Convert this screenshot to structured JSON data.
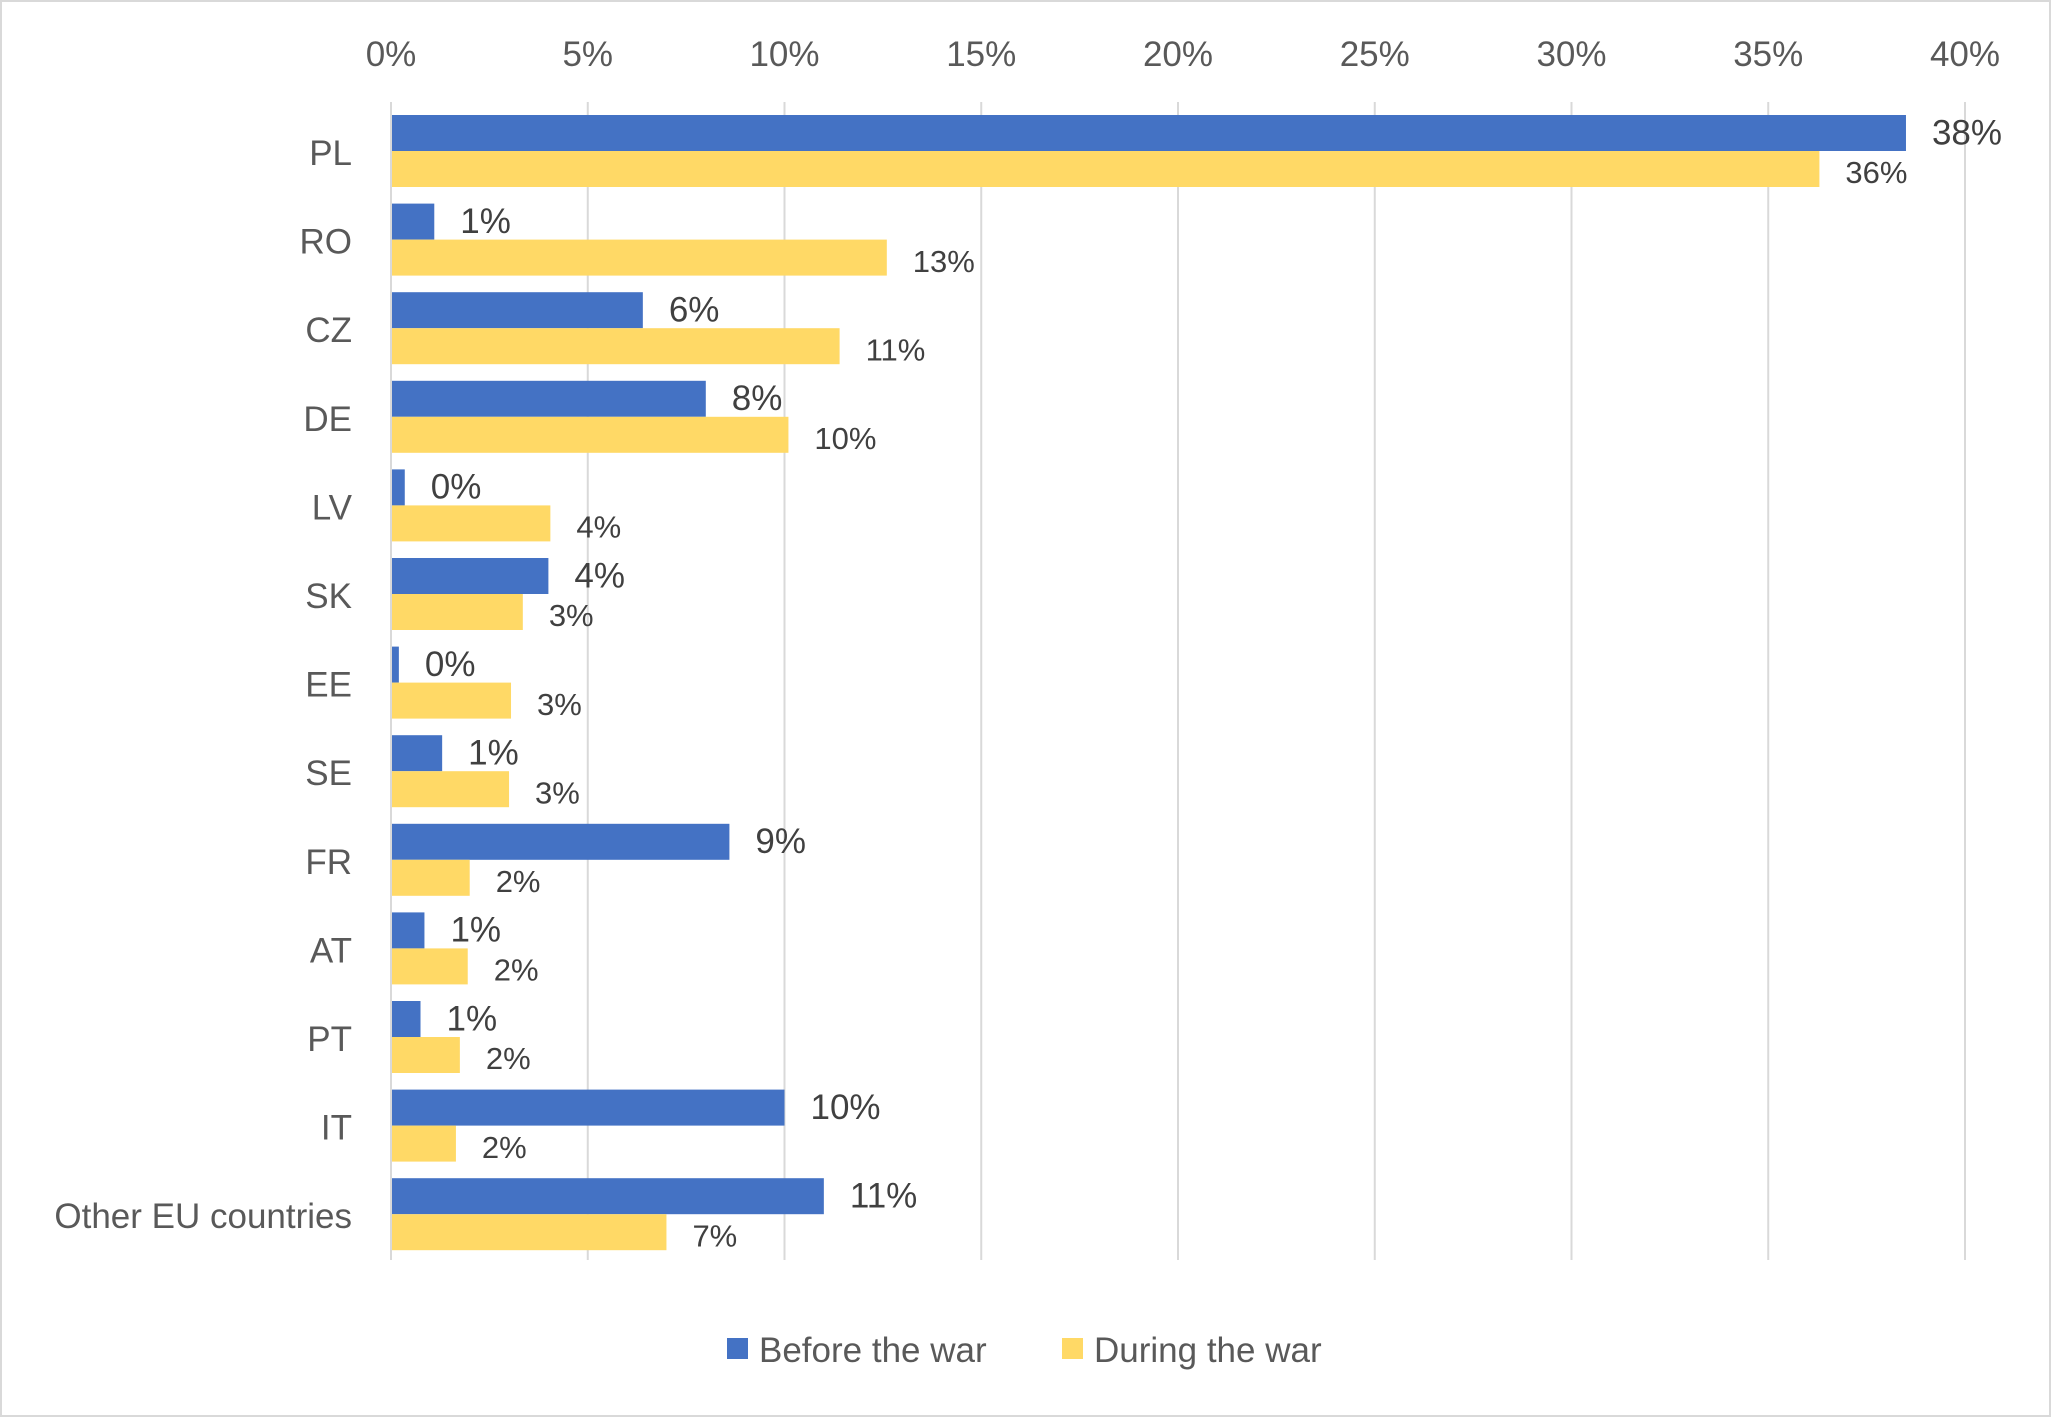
{
  "chart_data": {
    "type": "bar",
    "orientation": "horizontal",
    "categories": [
      "PL",
      "RO",
      "CZ",
      "DE",
      "LV",
      "SK",
      "EE",
      "SE",
      "FR",
      "AT",
      "PT",
      "IT",
      "Other EU countries"
    ],
    "series": [
      {
        "name": "Before the war",
        "color": "#4472C4",
        "values": [
          38.5,
          1.1,
          6.4,
          8.0,
          0.35,
          4.0,
          0.2,
          1.3,
          8.6,
          0.85,
          0.75,
          10.0,
          11.0
        ],
        "labels": [
          "38%",
          "1%",
          "6%",
          "8%",
          "0%",
          "4%",
          "0%",
          "1%",
          "9%",
          "1%",
          "1%",
          "10%",
          "11%"
        ]
      },
      {
        "name": "During the war",
        "color": "#FFD966",
        "values": [
          36.3,
          12.6,
          11.4,
          10.1,
          4.05,
          3.35,
          3.05,
          3.0,
          2.0,
          1.95,
          1.75,
          1.65,
          7.0
        ],
        "labels": [
          "36%",
          "13%",
          "11%",
          "10%",
          "4%",
          "3%",
          "3%",
          "3%",
          "2%",
          "2%",
          "2%",
          "2%",
          "7%"
        ]
      }
    ],
    "xlim": [
      0,
      40
    ],
    "xticks": [
      "0%",
      "5%",
      "10%",
      "15%",
      "20%",
      "25%",
      "30%",
      "35%",
      "40%"
    ],
    "xaxis_position": "top",
    "grid": true,
    "legend_position": "bottom"
  }
}
